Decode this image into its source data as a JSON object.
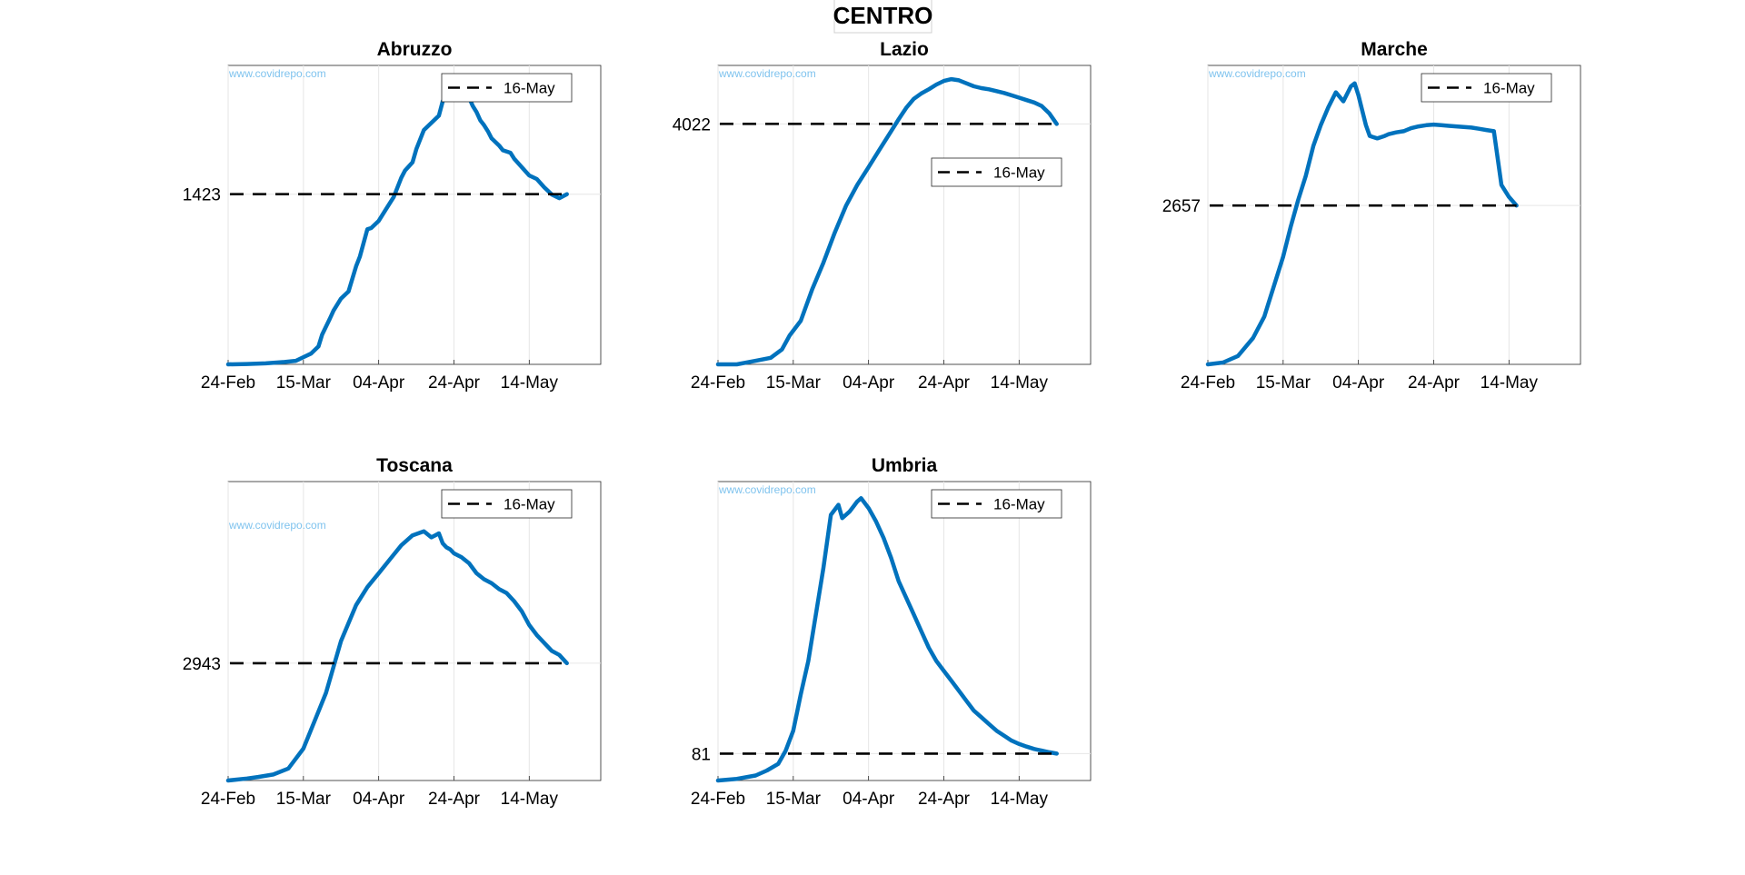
{
  "figure": {
    "title": "CENTRO",
    "watermark": "www.covidrepo.com"
  },
  "chart_data": [
    {
      "type": "line",
      "title": "Abruzzo",
      "x_tick_labels": [
        "24-Feb",
        "15-Mar",
        "04-Apr",
        "24-Apr",
        "14-May"
      ],
      "x_range_days": [
        0,
        99
      ],
      "y_range": [
        0,
        2500
      ],
      "y_tick_labels": [
        "1423"
      ],
      "reference": {
        "value": 1423,
        "label": "16-May",
        "legend_position": "top-right"
      },
      "grid": true,
      "series": [
        {
          "color": "#0072bd",
          "x": [
            0,
            5,
            10,
            15,
            18,
            20,
            22,
            24,
            25,
            27,
            28,
            30,
            32,
            34,
            35,
            37,
            38,
            40,
            42,
            44,
            46,
            47,
            49,
            50,
            52,
            54,
            56,
            57,
            58,
            60,
            61,
            62,
            63,
            64,
            65,
            66,
            67,
            68,
            69,
            70,
            72,
            73,
            75,
            76,
            78,
            80,
            82,
            84,
            86,
            88,
            90
          ],
          "y": [
            0,
            3,
            8,
            20,
            30,
            60,
            90,
            150,
            250,
            380,
            450,
            550,
            610,
            820,
            900,
            1130,
            1140,
            1200,
            1300,
            1400,
            1560,
            1620,
            1690,
            1800,
            1960,
            2020,
            2080,
            2200,
            2250,
            2310,
            2320,
            2300,
            2270,
            2230,
            2160,
            2110,
            2040,
            2000,
            1950,
            1890,
            1830,
            1790,
            1770,
            1720,
            1650,
            1580,
            1550,
            1480,
            1420,
            1390,
            1423
          ]
        }
      ]
    },
    {
      "type": "line",
      "title": "Lazio",
      "x_tick_labels": [
        "24-Feb",
        "15-Mar",
        "04-Apr",
        "24-Apr",
        "14-May"
      ],
      "x_range_days": [
        0,
        99
      ],
      "y_range": [
        0,
        5000
      ],
      "y_tick_labels": [
        "4022"
      ],
      "reference": {
        "value": 4022,
        "label": "16-May",
        "legend_position": "right"
      },
      "grid": true,
      "series": [
        {
          "color": "#0072bd",
          "x": [
            0,
            5,
            10,
            14,
            17,
            19,
            22,
            25,
            28,
            31,
            34,
            37,
            40,
            43,
            46,
            48,
            50,
            52,
            54,
            56,
            58,
            60,
            62,
            64,
            66,
            68,
            70,
            72,
            74,
            76,
            78,
            80,
            82,
            84,
            86,
            88,
            90
          ],
          "y": [
            0,
            0,
            60,
            110,
            250,
            480,
            730,
            1250,
            1700,
            2200,
            2650,
            3000,
            3300,
            3600,
            3900,
            4100,
            4290,
            4440,
            4530,
            4600,
            4680,
            4740,
            4770,
            4750,
            4700,
            4650,
            4620,
            4600,
            4570,
            4540,
            4500,
            4460,
            4420,
            4380,
            4320,
            4200,
            4022
          ]
        }
      ]
    },
    {
      "type": "line",
      "title": "Marche",
      "x_tick_labels": [
        "24-Feb",
        "15-Mar",
        "04-Apr",
        "24-Apr",
        "14-May"
      ],
      "x_range_days": [
        0,
        99
      ],
      "y_range": [
        0,
        5000
      ],
      "y_tick_labels": [
        "2657"
      ],
      "reference": {
        "value": 2657,
        "label": "16-May",
        "legend_position": "top-right"
      },
      "grid": true,
      "series": [
        {
          "color": "#0072bd",
          "x": [
            0,
            4,
            8,
            12,
            15,
            18,
            20,
            22,
            24,
            26,
            28,
            30,
            32,
            34,
            36,
            38,
            39,
            40,
            41,
            42,
            43,
            44,
            45,
            46,
            47,
            48,
            50,
            52,
            54,
            56,
            58,
            60,
            62,
            64,
            66,
            68,
            70,
            72,
            74,
            76,
            78,
            80,
            82
          ],
          "y": [
            0,
            30,
            140,
            440,
            800,
            1400,
            1800,
            2300,
            2750,
            3150,
            3650,
            4000,
            4300,
            4550,
            4400,
            4650,
            4700,
            4500,
            4250,
            4000,
            3820,
            3800,
            3780,
            3800,
            3820,
            3850,
            3880,
            3900,
            3950,
            3980,
            4000,
            4010,
            4000,
            3990,
            3980,
            3970,
            3960,
            3940,
            3920,
            3900,
            3000,
            2800,
            2657
          ]
        }
      ]
    },
    {
      "type": "line",
      "title": "Toscana",
      "x_tick_labels": [
        "24-Feb",
        "15-Mar",
        "04-Apr",
        "24-Apr",
        "14-May"
      ],
      "x_range_days": [
        0,
        99
      ],
      "y_range": [
        0,
        7500
      ],
      "y_tick_labels": [
        "2943"
      ],
      "reference": {
        "value": 2943,
        "label": "16-May",
        "legend_position": "top-right"
      },
      "grid": true,
      "series": [
        {
          "color": "#0072bd",
          "x": [
            0,
            5,
            8,
            12,
            16,
            20,
            23,
            26,
            30,
            34,
            37,
            40,
            43,
            46,
            49,
            52,
            54,
            55,
            56,
            57,
            58,
            59,
            60,
            62,
            64,
            66,
            68,
            70,
            72,
            74,
            76,
            78,
            80,
            82,
            84,
            86,
            88,
            90
          ],
          "y": [
            0,
            50,
            90,
            150,
            300,
            800,
            1500,
            2200,
            3500,
            4400,
            4850,
            5200,
            5550,
            5900,
            6150,
            6250,
            6100,
            6150,
            6200,
            5950,
            5850,
            5800,
            5700,
            5600,
            5450,
            5200,
            5050,
            4950,
            4800,
            4700,
            4500,
            4250,
            3900,
            3650,
            3450,
            3250,
            3150,
            2943
          ]
        }
      ]
    },
    {
      "type": "line",
      "title": "Umbria",
      "x_tick_labels": [
        "24-Feb",
        "15-Mar",
        "04-Apr",
        "24-Apr",
        "14-May"
      ],
      "x_range_days": [
        0,
        99
      ],
      "y_range": [
        0,
        900
      ],
      "y_tick_labels": [
        "81"
      ],
      "reference": {
        "value": 81,
        "label": "16-May",
        "legend_position": "top-right"
      },
      "grid": true,
      "series": [
        {
          "color": "#0072bd",
          "x": [
            0,
            5,
            10,
            13,
            16,
            18,
            20,
            22,
            24,
            26,
            28,
            30,
            32,
            33,
            34,
            35,
            36,
            37,
            38,
            40,
            42,
            44,
            46,
            48,
            50,
            52,
            54,
            56,
            58,
            60,
            62,
            64,
            66,
            68,
            70,
            72,
            74,
            76,
            78,
            80,
            82,
            84,
            86,
            88,
            90
          ],
          "y": [
            0,
            5,
            15,
            30,
            50,
            90,
            150,
            260,
            360,
            500,
            640,
            800,
            830,
            790,
            800,
            810,
            825,
            840,
            850,
            820,
            780,
            730,
            670,
            600,
            550,
            500,
            450,
            400,
            360,
            330,
            300,
            270,
            240,
            210,
            190,
            170,
            150,
            135,
            120,
            110,
            102,
            95,
            90,
            85,
            81
          ]
        }
      ]
    }
  ]
}
